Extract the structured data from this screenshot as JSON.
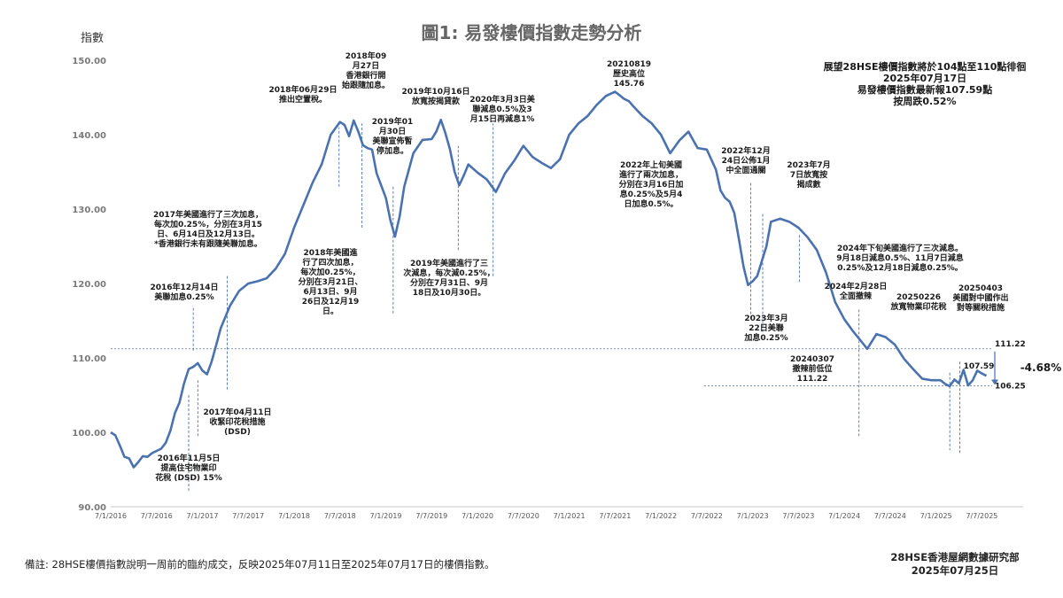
{
  "chart_data": {
    "type": "line",
    "title": "圖1: 易發樓價指數走勢分析",
    "ylabel": "指數",
    "ylim": [
      90,
      150
    ],
    "yticks": [
      "150.00",
      "140.00",
      "130.00",
      "120.00",
      "110.00",
      "100.00",
      "90.00"
    ],
    "xticks": [
      "7/1/2016",
      "7/7/2016",
      "7/1/2017",
      "7/7/2017",
      "7/1/2018",
      "7/7/2018",
      "7/1/2019",
      "7/7/2019",
      "7/1/2020",
      "7/7/2020",
      "7/1/2021",
      "7/7/2021",
      "7/1/2022",
      "7/7/2022",
      "7/1/2023",
      "7/7/2023",
      "7/1/2024",
      "7/7/2024",
      "7/1/2025",
      "7/7/2025"
    ],
    "line_color": "#4a72b0",
    "series": [
      {
        "x": [
          2016.0,
          2016.05,
          2016.1,
          2016.15,
          2016.2,
          2016.25,
          2016.3,
          2016.35,
          2016.4,
          2016.45,
          2016.5,
          2016.55,
          2016.6,
          2016.65,
          2016.7,
          2016.75,
          2016.8,
          2016.85,
          2016.9,
          2016.95,
          2017.0,
          2017.05,
          2017.1,
          2017.15,
          2017.2,
          2017.3,
          2017.4,
          2017.5,
          2017.6,
          2017.7,
          2017.8,
          2017.9,
          2018.0,
          2018.1,
          2018.2,
          2018.3,
          2018.4,
          2018.5,
          2018.55,
          2018.6,
          2018.65,
          2018.7,
          2018.75,
          2018.8,
          2018.85,
          2018.9,
          2019.0,
          2019.05,
          2019.1,
          2019.15,
          2019.2,
          2019.3,
          2019.4,
          2019.5,
          2019.55,
          2019.6,
          2019.65,
          2019.7,
          2019.75,
          2019.8,
          2019.85,
          2019.9,
          2020.0,
          2020.1,
          2020.2,
          2020.3,
          2020.4,
          2020.5,
          2020.6,
          2020.7,
          2020.8,
          2020.9,
          2021.0,
          2021.1,
          2021.2,
          2021.3,
          2021.4,
          2021.5,
          2021.55,
          2021.6,
          2021.65,
          2021.7,
          2021.8,
          2021.9,
          2022.0,
          2022.1,
          2022.2,
          2022.3,
          2022.4,
          2022.5,
          2022.6,
          2022.65,
          2022.7,
          2022.75,
          2022.8,
          2022.85,
          2022.9,
          2022.95,
          2023.0,
          2023.05,
          2023.1,
          2023.15,
          2023.2,
          2023.3,
          2023.4,
          2023.5,
          2023.6,
          2023.7,
          2023.8,
          2023.9,
          2024.0,
          2024.1,
          2024.18,
          2024.25,
          2024.35,
          2024.45,
          2024.55,
          2024.65,
          2024.75,
          2024.85,
          2024.95,
          2025.05,
          2025.1,
          2025.15,
          2025.2,
          2025.25,
          2025.3,
          2025.35,
          2025.4,
          2025.45,
          2025.5,
          2025.55
        ],
        "y": [
          100.0,
          99.6,
          98.2,
          96.7,
          96.5,
          95.3,
          96.0,
          96.8,
          96.7,
          97.2,
          97.5,
          97.8,
          98.6,
          100.2,
          102.6,
          104.0,
          106.6,
          108.5,
          108.8,
          109.3,
          108.3,
          107.8,
          109.5,
          111.7,
          114.0,
          117.0,
          119.0,
          120.0,
          120.3,
          120.7,
          122.0,
          124.0,
          127.5,
          130.5,
          133.5,
          136.0,
          140.0,
          141.7,
          141.3,
          139.8,
          141.9,
          140.4,
          138.6,
          138.2,
          138.0,
          134.8,
          131.5,
          128.5,
          126.3,
          129.0,
          133.0,
          137.5,
          139.3,
          139.4,
          140.4,
          142.0,
          140.2,
          138.0,
          135.0,
          133.2,
          134.5,
          136.0,
          134.9,
          134.0,
          132.3,
          134.8,
          136.5,
          138.5,
          137.0,
          136.2,
          135.5,
          136.7,
          140.0,
          141.5,
          142.5,
          144.0,
          145.2,
          145.76,
          145.3,
          144.8,
          144.5,
          143.8,
          142.5,
          141.5,
          140.0,
          137.5,
          139.2,
          140.4,
          138.2,
          138.0,
          135.3,
          132.5,
          131.5,
          131.0,
          129.5,
          126.0,
          122.3,
          119.8,
          120.3,
          121.0,
          123.0,
          125.0,
          128.3,
          128.7,
          128.3,
          127.5,
          126.2,
          124.5,
          121.5,
          117.5,
          115.2,
          113.5,
          112.3,
          111.22,
          113.2,
          112.8,
          111.8,
          109.9,
          108.5,
          107.2,
          107.0,
          107.0,
          106.5,
          106.2,
          107.1,
          106.6,
          108.4,
          106.3,
          107.0,
          108.3,
          107.9,
          107.59
        ]
      }
    ],
    "reference_lines": [
      {
        "y": 111.22,
        "label": "111.22"
      },
      {
        "y": 106.25,
        "label": "106.25"
      }
    ],
    "point_labels": [
      {
        "x": 2025.55,
        "y": 107.59,
        "label": "107.59"
      }
    ],
    "change_label": "-4.68%",
    "annotation_texts": [
      {
        "id": "a1",
        "lines": [
          "2016年11月5日",
          "提高住宅物業印",
          "花稅 (DSD) 15%"
        ]
      },
      {
        "id": "a2",
        "lines": [
          "2016年12月14日",
          "美聯加息0.25%"
        ]
      },
      {
        "id": "a3",
        "lines": [
          "2017年美國進行了三次加息，",
          "每次加0.25%，分別在3月15",
          "日、6月14日及12月13日。",
          "*香港銀行未有跟隨美聯加息。"
        ]
      },
      {
        "id": "a4",
        "lines": [
          "2017年04月11日",
          "收緊印花稅措施",
          "(DSD)"
        ]
      },
      {
        "id": "a5",
        "lines": [
          "2018年06月29日",
          "推出空置稅。"
        ]
      },
      {
        "id": "a6",
        "lines": [
          "2018年09",
          "月27日",
          "香港銀行開",
          "始跟隨加息。"
        ]
      },
      {
        "id": "a7",
        "lines": [
          "2019年01",
          "月30日",
          "美聯宣佈暫",
          "停加息。"
        ]
      },
      {
        "id": "a8",
        "lines": [
          "2018年美國進",
          "行了四次加息，",
          "每次加0.25%，",
          "分別在3月21日、",
          "6月13日、9月",
          "26日及12月19",
          "日。"
        ]
      },
      {
        "id": "a9",
        "lines": [
          "2019年10月16日",
          "放寬按揭貸款"
        ]
      },
      {
        "id": "a10",
        "lines": [
          "2020年3月3日美",
          "聯減息0.5%及3",
          "月15日再減息1%"
        ]
      },
      {
        "id": "a11",
        "lines": [
          "2019年美國進行了三",
          "次減息，每次減0.25%，",
          "分別在7月31日、9月",
          "18日及10月30日。"
        ]
      },
      {
        "id": "a12",
        "lines": [
          "20210819",
          "歷史高位",
          "145.76"
        ]
      },
      {
        "id": "a13",
        "lines": [
          "2022年上旬美國",
          "進行了兩次加息，",
          "分別在3月16日加",
          "息0.25%及5月4",
          "日加息0.5%。"
        ]
      },
      {
        "id": "a14",
        "lines": [
          "2022年12月",
          "24日公佈1月",
          "中全面通關"
        ]
      },
      {
        "id": "a15",
        "lines": [
          "2023年7月",
          "7日放寬按",
          "揭成數"
        ]
      },
      {
        "id": "a16",
        "lines": [
          "2024年下旬美國進行了三次減息。",
          "9月18日減息0.5%、11月7日減息",
          "0.25%及12月18日減息0.25%。"
        ]
      },
      {
        "id": "a17",
        "lines": [
          "2024年2月28日",
          "全面撤辣"
        ]
      },
      {
        "id": "a18",
        "lines": [
          "20250226",
          "放寬物業印花稅"
        ]
      },
      {
        "id": "a19",
        "lines": [
          "20250403",
          "美國對中國作出",
          "對等關稅措施"
        ]
      },
      {
        "id": "a20",
        "lines": [
          "2023年3月",
          "22日美聯",
          "加息0.25%"
        ]
      },
      {
        "id": "a21",
        "lines": [
          "20240307",
          "撤辣前低位",
          "111.22"
        ]
      }
    ]
  },
  "header": {
    "lines": [
      "展望28HSE樓價指數將於104點至110點徘徊",
      "2025年07月17日",
      "易發樓價指數最新報107.59點",
      "按周跌0.52%"
    ]
  },
  "footer": {
    "note": "備註: 28HSE樓價指數說明一周前的臨約成交，反映2025年07月11日至2025年07月17日的樓價指數。",
    "org": "28HSE香港屋網數據研究部",
    "date": "2025年07月25日"
  }
}
